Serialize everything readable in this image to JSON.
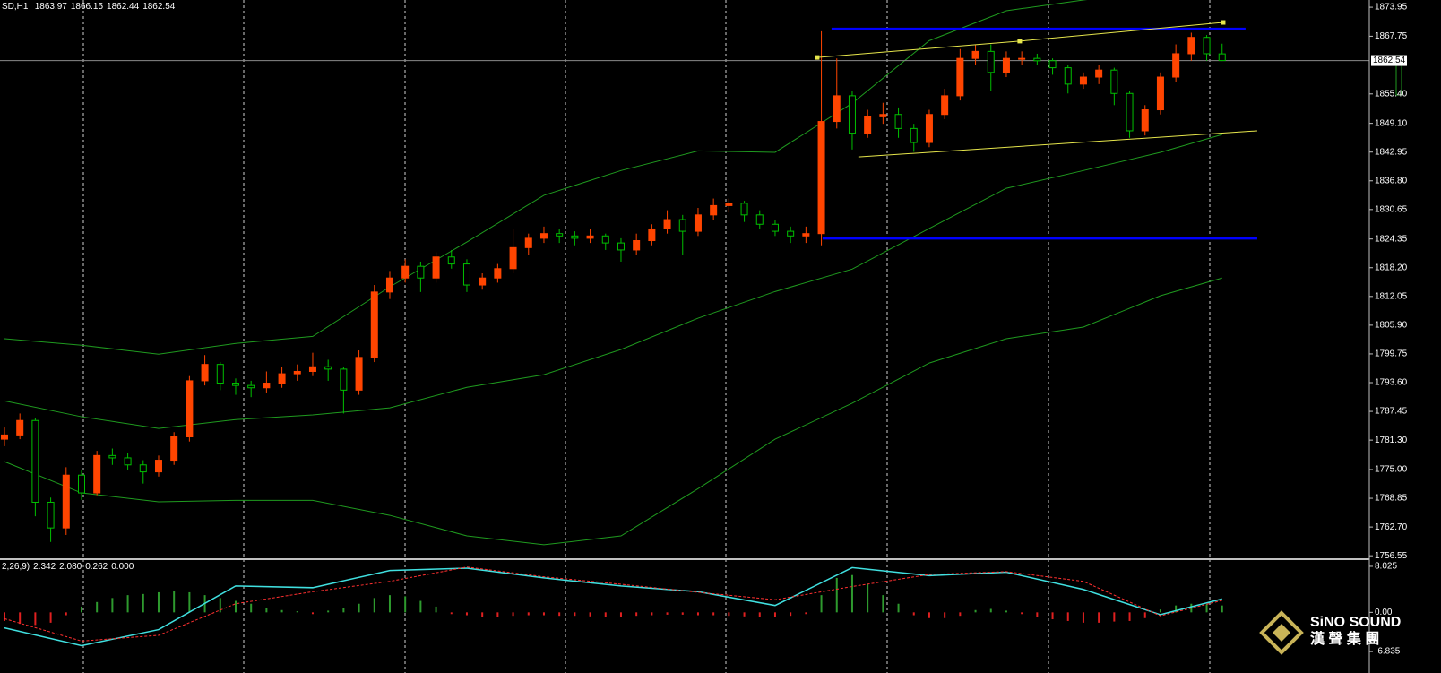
{
  "header": {
    "symbol": "SD,H1",
    "open": 1863.97,
    "high": 1866.15,
    "low": 1862.44,
    "close": 1862.54
  },
  "watermark": {
    "name": "SiNO SOUND",
    "chinese": "漢 聲 集 團"
  },
  "chart_data": [
    {
      "type": "candlestick",
      "up_color": "#ff4500",
      "down_color": "#00c000",
      "grid": false,
      "xlim": [
        -0.29,
        88.55
      ],
      "ylim": [
        1756.2,
        1875.5
      ],
      "last_price": 1862.54,
      "yticks": [
        1873.95,
        1867.75,
        {
          "value": 1855.4,
          "label": "1855.40"
        },
        {
          "value": 1849.1,
          "label": "1849.10"
        },
        1842.95,
        {
          "value": 1836.8,
          "label": "1836.80"
        },
        1830.65,
        1824.35,
        {
          "value": 1818.2,
          "label": "1818.20"
        },
        1812.05,
        {
          "value": 1805.9,
          "label": "1805.90"
        },
        1799.75,
        {
          "value": 1793.6,
          "label": "1793.60"
        },
        1787.45,
        {
          "value": 1781.3,
          "label": "1781.30"
        },
        {
          "value": 1775,
          "label": "1775.00"
        },
        1768.85,
        {
          "value": 1762.7,
          "label": "1762.70"
        },
        1756.55
      ],
      "ohlc": [
        [
          1781.5,
          1784,
          1780,
          1782.4
        ],
        [
          1782.4,
          1787,
          1781.5,
          1785.5
        ],
        [
          1785.5,
          1786,
          1765,
          1768
        ],
        [
          1768,
          1769,
          1759.5,
          1762.5
        ],
        [
          1762.5,
          1775.5,
          1761,
          1773.8
        ],
        [
          1773.8,
          1775,
          1768.5,
          1770
        ],
        [
          1770,
          1779,
          1769.5,
          1778
        ],
        [
          1778,
          1779.5,
          1776,
          1777.5
        ],
        [
          1777.5,
          1778.5,
          1775,
          1776
        ],
        [
          1776,
          1777,
          1772,
          1774.5
        ],
        [
          1774.5,
          1778,
          1773.5,
          1777
        ],
        [
          1777,
          1783,
          1776,
          1782
        ],
        [
          1782,
          1795,
          1781,
          1794
        ],
        [
          1794,
          1799.5,
          1793,
          1797.5
        ],
        [
          1797.5,
          1798,
          1792,
          1793.5
        ],
        [
          1793.5,
          1794.5,
          1791,
          1793
        ],
        [
          1793,
          1794,
          1790.5,
          1792.5
        ],
        [
          1792.5,
          1796,
          1791.5,
          1793.5
        ],
        [
          1793.5,
          1797,
          1792.5,
          1795.5
        ],
        [
          1795.5,
          1797.5,
          1794,
          1796
        ],
        [
          1796,
          1800,
          1795,
          1797
        ],
        [
          1797,
          1798.5,
          1794,
          1796.5
        ],
        [
          1796.5,
          1797,
          1787,
          1792
        ],
        [
          1792,
          1800.5,
          1791,
          1799
        ],
        [
          1799,
          1814.5,
          1798,
          1813
        ],
        [
          1813,
          1817.5,
          1811.5,
          1816
        ],
        [
          1816,
          1820,
          1815,
          1818.5
        ],
        [
          1818.5,
          1819.5,
          1813,
          1816
        ],
        [
          1816,
          1821.5,
          1815,
          1820.5
        ],
        [
          1820.5,
          1822,
          1818,
          1819
        ],
        [
          1819,
          1820,
          1813,
          1814.5
        ],
        [
          1814.5,
          1817,
          1813.5,
          1816
        ],
        [
          1816,
          1819,
          1815,
          1818
        ],
        [
          1818,
          1826.5,
          1817,
          1822.5
        ],
        [
          1822.5,
          1825.5,
          1821,
          1824.5
        ],
        [
          1824.5,
          1827,
          1823.5,
          1825.5
        ],
        [
          1825.5,
          1826.5,
          1823.5,
          1825
        ],
        [
          1825,
          1826,
          1823,
          1824.5
        ],
        [
          1824.5,
          1826.5,
          1823.5,
          1825
        ],
        [
          1825,
          1825.5,
          1822,
          1823.5
        ],
        [
          1823.5,
          1824.5,
          1819.5,
          1822
        ],
        [
          1822,
          1825.5,
          1821,
          1824
        ],
        [
          1824,
          1827.5,
          1823,
          1826.5
        ],
        [
          1826.5,
          1830.5,
          1825.5,
          1828.5
        ],
        [
          1828.5,
          1829.5,
          1821,
          1826
        ],
        [
          1826,
          1831,
          1825,
          1829.5
        ],
        [
          1829.5,
          1833,
          1828.5,
          1831.5
        ],
        [
          1831.5,
          1833,
          1830,
          1832
        ],
        [
          1832,
          1832.5,
          1828,
          1829.5
        ],
        [
          1829.5,
          1830.5,
          1826.5,
          1827.5
        ],
        [
          1827.5,
          1828.5,
          1825,
          1826
        ],
        [
          1826,
          1827,
          1823.5,
          1825
        ],
        [
          1825,
          1827,
          1823.5,
          1825.5
        ],
        [
          1825.5,
          1868.8,
          1823,
          1849.5
        ],
        [
          1849.5,
          1863,
          1848,
          1855
        ],
        [
          1855,
          1856,
          1843.5,
          1847
        ],
        [
          1847,
          1852,
          1846,
          1850.5
        ],
        [
          1850.5,
          1853.5,
          1849,
          1851
        ],
        [
          1851,
          1852.5,
          1846,
          1848
        ],
        [
          1848,
          1849,
          1843,
          1845
        ],
        [
          1845,
          1852,
          1844,
          1851
        ],
        [
          1851,
          1856.5,
          1850,
          1855
        ],
        [
          1855,
          1865,
          1854,
          1863
        ],
        [
          1863,
          1866,
          1861.5,
          1864.5
        ],
        [
          1864.5,
          1866,
          1856,
          1860
        ],
        [
          1860,
          1864.5,
          1859,
          1863
        ],
        [
          1863,
          1864.5,
          1861.5,
          1863
        ],
        [
          1863,
          1864,
          1861.5,
          1862.5
        ],
        [
          1862.5,
          1863,
          1859.5,
          1861
        ],
        [
          1861,
          1861.5,
          1855.5,
          1857.5
        ],
        [
          1857.5,
          1860,
          1856.5,
          1859
        ],
        [
          1859,
          1861.5,
          1857.5,
          1860.5
        ],
        [
          1860.5,
          1861,
          1853,
          1855.5
        ],
        [
          1855.5,
          1856,
          1846,
          1847.5
        ],
        [
          1847.5,
          1853,
          1846.5,
          1852
        ],
        [
          1852,
          1860,
          1851,
          1859
        ],
        [
          1859,
          1866,
          1858,
          1864
        ],
        [
          1864,
          1868.5,
          1862.5,
          1867.5
        ],
        [
          1867.5,
          1868,
          1862.5,
          1864
        ],
        [
          1863.97,
          1866.15,
          1862.44,
          1862.54
        ]
      ],
      "bands": {
        "color": "#1f9a1f",
        "x": [
          0,
          5,
          10,
          15,
          20,
          25,
          30,
          35,
          40,
          45,
          50,
          55,
          60,
          65,
          70,
          75,
          79
        ],
        "upper": [
          1803,
          1801.6,
          1799.7,
          1802,
          1803.5,
          1814.1,
          1823.7,
          1833.7,
          1839,
          1843.2,
          1842.9,
          1853.4,
          1866.8,
          1873.2,
          1875.5,
          1877.4,
          1879.3
        ],
        "middle": [
          1789.7,
          1786.3,
          1783.8,
          1785.7,
          1786.7,
          1788.2,
          1792.6,
          1795.3,
          1800.7,
          1807.4,
          1813.1,
          1817.9,
          1826.6,
          1835.2,
          1839,
          1842.9,
          1846.7
        ],
        "lower": [
          1776.7,
          1770,
          1768.1,
          1768.4,
          1768.4,
          1765.2,
          1760.8,
          1758.9,
          1760.8,
          1770.9,
          1781.5,
          1789.2,
          1797.8,
          1803,
          1805.5,
          1812.2,
          1816
        ]
      },
      "objects": [
        {
          "color": "#0000ff",
          "width": 3,
          "markers": false,
          "x": [
            53.66,
            80.52
          ],
          "y": [
            1869.3,
            1869.3
          ]
        },
        {
          "color": "#0000ff",
          "width": 3,
          "markers": false,
          "x": [
            53.08,
            81.28
          ],
          "y": [
            1824.5,
            1824.5
          ]
        },
        {
          "color": "#e6e64c",
          "width": 1,
          "markers": true,
          "x": [
            52.73,
            65.87,
            79.07
          ],
          "y": [
            1863.2,
            1866.7,
            1870.7
          ]
        },
        {
          "color": "#e6e64c",
          "width": 1,
          "markers": false,
          "x": [
            55.4,
            81.28
          ],
          "y": [
            1841.9,
            1847.5
          ]
        }
      ]
    },
    {
      "type": "macd",
      "title": "2,26,9)",
      "readout": [
        "2.342",
        "2.080",
        "0.262",
        "0.000"
      ],
      "xlim": [
        -0.29,
        88.55
      ],
      "ylim": [
        -7.6,
        8.8
      ],
      "pos_color": "#2e9a2e",
      "neg_color": "#e02020",
      "yticks": [
        8.025,
        {
          "value": 0,
          "label": "0.00"
        },
        -6.835
      ],
      "histogram": [
        -1.5,
        -2,
        -2.2,
        -1.8,
        -0.5,
        1,
        1.8,
        2.5,
        3,
        3.2,
        3.5,
        3.8,
        3.5,
        3,
        2.5,
        2,
        1.5,
        0.8,
        0.4,
        0.2,
        -0.3,
        0.3,
        0.8,
        1.5,
        2.5,
        3,
        2.8,
        2,
        1,
        -0.3,
        -0.5,
        -0.8,
        -0.8,
        -0.6,
        -0.5,
        -0.5,
        -0.6,
        -0.6,
        -0.7,
        -0.8,
        -0.8,
        -0.6,
        -0.5,
        -0.4,
        -0.4,
        -0.5,
        -0.5,
        -0.6,
        -0.7,
        -0.8,
        -0.8,
        -0.6,
        -0.3,
        3,
        6,
        6.5,
        5,
        3,
        1.5,
        -0.5,
        -1,
        -1,
        -0.6,
        0.4,
        0.6,
        0.3,
        -0.3,
        -0.8,
        -1.2,
        -1.5,
        -1.8,
        -1.8,
        -1.6,
        -1.5,
        -1,
        0.5,
        1.2,
        1.5,
        1.4,
        1.2
      ],
      "x": [
        0,
        5,
        10,
        15,
        20,
        25,
        30,
        35,
        40,
        45,
        50,
        55,
        60,
        65,
        70,
        75,
        79
      ],
      "series": [
        {
          "color": "#40e0e0",
          "dash": false,
          "values": [
            -2.7,
            -5.8,
            -3,
            4.6,
            4.3,
            7.3,
            7.7,
            6,
            4.6,
            3.6,
            1.2,
            7.8,
            6.4,
            7,
            4,
            -0.4,
            2.342
          ]
        },
        {
          "color": "#ff3030",
          "dash": true,
          "values": [
            -1.1,
            -5,
            -4,
            1.5,
            3.6,
            5.4,
            7.9,
            6.2,
            4.9,
            3.5,
            2.2,
            4.5,
            6.6,
            7.1,
            5.4,
            -0.6,
            2.08
          ]
        }
      ]
    }
  ]
}
